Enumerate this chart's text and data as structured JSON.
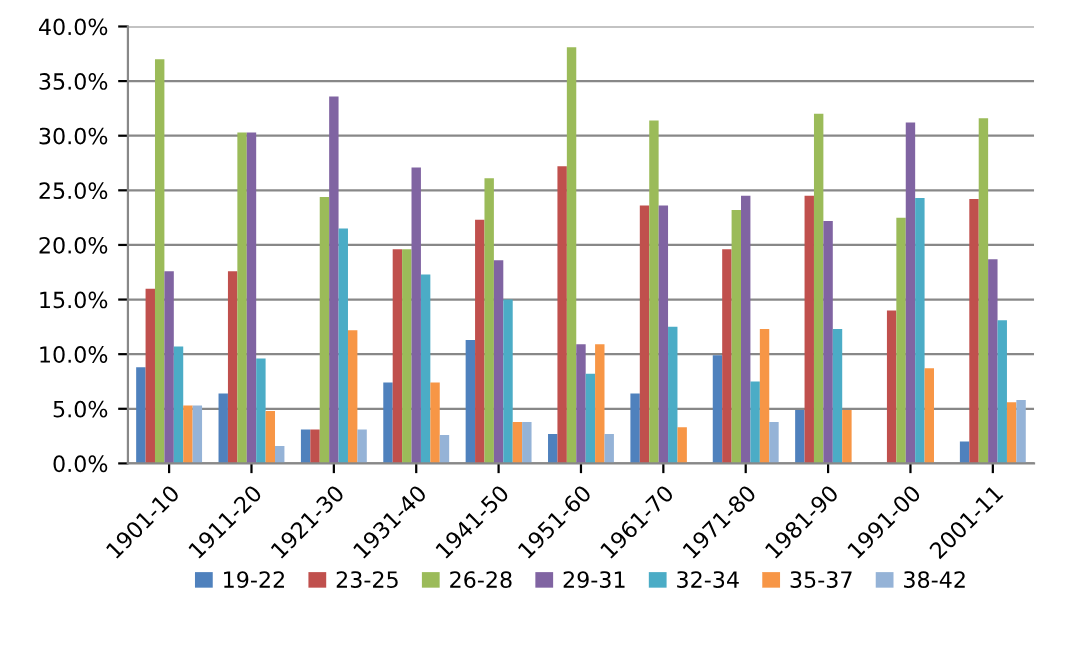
{
  "chart_data": {
    "type": "bar",
    "categories": [
      "1901-10",
      "1911-20",
      "1921-30",
      "1931-40",
      "1941-50",
      "1951-60",
      "1961-70",
      "1971-80",
      "1981-90",
      "1991-00",
      "2001-11"
    ],
    "series": [
      {
        "name": "19-22",
        "color": "#4f81bd",
        "values": [
          8.8,
          6.4,
          3.1,
          7.4,
          11.3,
          2.7,
          6.4,
          9.9,
          4.9,
          0,
          2.0
        ]
      },
      {
        "name": "23-25",
        "color": "#c0504d",
        "values": [
          16.0,
          17.6,
          3.1,
          19.6,
          22.3,
          27.2,
          23.6,
          19.6,
          24.5,
          14.0,
          24.2
        ]
      },
      {
        "name": "26-28",
        "color": "#9bbb59",
        "values": [
          37.0,
          30.3,
          24.4,
          19.6,
          26.1,
          38.1,
          31.4,
          23.2,
          32.0,
          22.5,
          31.6
        ]
      },
      {
        "name": "29-31",
        "color": "#8064a2",
        "values": [
          17.6,
          30.3,
          33.6,
          27.1,
          18.6,
          10.9,
          23.6,
          24.5,
          22.2,
          31.2,
          18.7
        ]
      },
      {
        "name": "32-34",
        "color": "#4bacc6",
        "values": [
          10.7,
          9.6,
          21.5,
          17.3,
          15.0,
          8.2,
          12.5,
          7.5,
          12.3,
          24.3,
          13.1
        ]
      },
      {
        "name": "35-37",
        "color": "#f79646",
        "values": [
          5.3,
          4.8,
          12.2,
          7.4,
          3.8,
          10.9,
          3.3,
          12.3,
          4.9,
          8.7,
          5.6
        ]
      },
      {
        "name": "38-42",
        "color": "#95b3d7",
        "values": [
          5.3,
          1.6,
          3.1,
          2.6,
          3.8,
          2.7,
          0,
          3.8,
          0,
          0,
          5.8
        ]
      }
    ],
    "ylim": [
      0,
      40
    ],
    "yticks": [
      {
        "value": 0,
        "label": "0.0%"
      },
      {
        "value": 5,
        "label": "5.0%"
      },
      {
        "value": 10,
        "label": "10.0%"
      },
      {
        "value": 15,
        "label": "15.0%"
      },
      {
        "value": 20,
        "label": "20.0%"
      },
      {
        "value": 25,
        "label": "25.0%"
      },
      {
        "value": 30,
        "label": "30.0%"
      },
      {
        "value": 35,
        "label": "35.0%"
      },
      {
        "value": 40,
        "label": "40.0%"
      }
    ],
    "grid": "y",
    "legend": "bottom"
  }
}
